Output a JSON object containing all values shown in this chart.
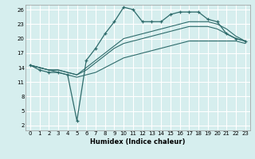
{
  "xlabel": "Humidex (Indice chaleur)",
  "bg_color": "#d6eeee",
  "line_color": "#2e6b6b",
  "grid_color": "#ffffff",
  "xlim": [
    -0.5,
    23.5
  ],
  "ylim": [
    1,
    27
  ],
  "yticks": [
    2,
    5,
    8,
    11,
    14,
    17,
    20,
    23,
    26
  ],
  "xticks": [
    0,
    1,
    2,
    3,
    4,
    5,
    6,
    7,
    8,
    9,
    10,
    11,
    12,
    13,
    14,
    15,
    16,
    17,
    18,
    19,
    20,
    21,
    22,
    23
  ],
  "series_marked": {
    "x": [
      0,
      1,
      2,
      3,
      4,
      5,
      6,
      7,
      8,
      9,
      10,
      11,
      12,
      13,
      14,
      15,
      16,
      17,
      18,
      19,
      20,
      21,
      22,
      23
    ],
    "y": [
      14.5,
      13.5,
      13.0,
      13.0,
      12.5,
      3.0,
      15.5,
      18.0,
      21.0,
      23.5,
      26.5,
      26.0,
      23.5,
      23.5,
      23.5,
      25.0,
      25.5,
      25.5,
      25.5,
      24.0,
      23.5,
      21.0,
      20.0,
      19.5
    ]
  },
  "series_smooth": [
    {
      "x": [
        0,
        1,
        2,
        3,
        4,
        5,
        6,
        7,
        8,
        9,
        10,
        11,
        12,
        13,
        14,
        15,
        16,
        17,
        18,
        19,
        20,
        21,
        22,
        23
      ],
      "y": [
        14.5,
        14.0,
        13.5,
        13.5,
        13.0,
        12.5,
        14.0,
        15.5,
        17.0,
        18.5,
        20.0,
        20.5,
        21.0,
        21.5,
        22.0,
        22.5,
        23.0,
        23.5,
        23.5,
        23.5,
        23.0,
        22.0,
        20.5,
        19.5
      ]
    },
    {
      "x": [
        0,
        1,
        2,
        3,
        4,
        5,
        6,
        7,
        8,
        9,
        10,
        11,
        12,
        13,
        14,
        15,
        16,
        17,
        18,
        19,
        20,
        21,
        22,
        23
      ],
      "y": [
        14.5,
        14.0,
        13.5,
        13.5,
        13.0,
        12.5,
        13.5,
        15.0,
        16.5,
        18.0,
        19.0,
        19.5,
        20.0,
        20.5,
        21.0,
        21.5,
        22.0,
        22.5,
        22.5,
        22.5,
        22.0,
        21.0,
        20.0,
        19.5
      ]
    },
    {
      "x": [
        0,
        1,
        2,
        3,
        4,
        5,
        6,
        7,
        8,
        9,
        10,
        11,
        12,
        13,
        14,
        15,
        16,
        17,
        18,
        19,
        20,
        21,
        22,
        23
      ],
      "y": [
        14.5,
        14.0,
        13.5,
        13.0,
        12.5,
        12.0,
        12.5,
        13.0,
        14.0,
        15.0,
        16.0,
        16.5,
        17.0,
        17.5,
        18.0,
        18.5,
        19.0,
        19.5,
        19.5,
        19.5,
        19.5,
        19.5,
        19.5,
        19.0
      ]
    }
  ]
}
